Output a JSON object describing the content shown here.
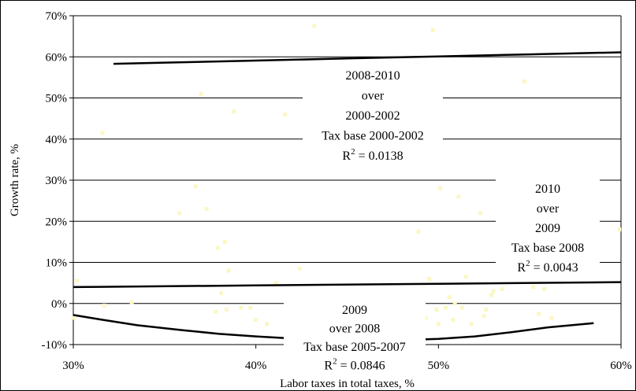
{
  "chart_data": {
    "type": "scatter",
    "xlabel": "Labor taxes in total taxes, %",
    "ylabel": "Growth rate, %",
    "xlim": [
      30,
      60
    ],
    "ylim": [
      -10,
      70
    ],
    "x_ticks": [
      30,
      40,
      50,
      60
    ],
    "x_tick_labels": [
      "30%",
      "40%",
      "50%",
      "60%"
    ],
    "y_ticks": [
      -10,
      0,
      10,
      20,
      30,
      40,
      50,
      60,
      70
    ],
    "y_tick_labels": [
      "-10%",
      "0%",
      "10%",
      "20%",
      "30%",
      "40%",
      "50%",
      "60%",
      "70%"
    ],
    "grid": "horizontal",
    "point_color": "#fbf7c4",
    "line_color": "#000000",
    "points": [
      [
        30.0,
        -3.5
      ],
      [
        30.2,
        5.5
      ],
      [
        31.6,
        41.5
      ],
      [
        31.7,
        -0.5
      ],
      [
        33.2,
        0.3
      ],
      [
        35.8,
        22.0
      ],
      [
        36.7,
        28.5
      ],
      [
        37.0,
        51.0
      ],
      [
        37.3,
        23.0
      ],
      [
        37.8,
        -2.0
      ],
      [
        37.9,
        13.5
      ],
      [
        38.1,
        2.5
      ],
      [
        38.3,
        15.0
      ],
      [
        38.4,
        -1.5
      ],
      [
        38.5,
        8.0
      ],
      [
        38.8,
        46.7
      ],
      [
        39.2,
        -1.0
      ],
      [
        39.7,
        -1.0
      ],
      [
        40.0,
        -4.0
      ],
      [
        40.6,
        -5.0
      ],
      [
        41.1,
        5.0
      ],
      [
        41.6,
        46.0
      ],
      [
        42.4,
        8.5
      ],
      [
        43.2,
        67.5
      ],
      [
        48.9,
        17.5
      ],
      [
        49.3,
        -3.5
      ],
      [
        49.5,
        6.0
      ],
      [
        49.7,
        66.5
      ],
      [
        49.9,
        -1.5
      ],
      [
        50.0,
        -5.0
      ],
      [
        50.1,
        28.0
      ],
      [
        50.4,
        -1.0
      ],
      [
        50.6,
        1.5
      ],
      [
        50.8,
        -4.0
      ],
      [
        50.9,
        0.0
      ],
      [
        51.1,
        26.0
      ],
      [
        51.3,
        -1.0
      ],
      [
        51.5,
        6.5
      ],
      [
        51.8,
        -5.0
      ],
      [
        52.3,
        22.0
      ],
      [
        52.5,
        -3.0
      ],
      [
        52.6,
        -1.5
      ],
      [
        52.9,
        2.0
      ],
      [
        53.0,
        3.0
      ],
      [
        53.5,
        3.5
      ],
      [
        54.7,
        54.0
      ],
      [
        55.2,
        4.0
      ],
      [
        55.5,
        -2.5
      ],
      [
        55.8,
        3.5
      ],
      [
        56.2,
        -3.5
      ],
      [
        59.9,
        18.0
      ]
    ],
    "trendlines": [
      {
        "x": [
          32.2,
          35,
          40,
          45,
          50,
          55,
          60
        ],
        "y": [
          58.3,
          58.6,
          59.1,
          59.6,
          60.1,
          60.6,
          61.1
        ]
      },
      {
        "x": [
          30,
          40,
          50,
          60
        ],
        "y": [
          4.0,
          4.4,
          4.8,
          5.2
        ]
      },
      {
        "x": [
          30.0,
          31.5,
          33.5,
          36.0,
          38.0,
          40.0,
          42.0,
          44.0,
          46.0,
          48.0,
          50.0,
          52.0,
          54.0,
          56.0,
          58.5
        ],
        "y": [
          -2.8,
          -3.9,
          -5.3,
          -6.5,
          -7.4,
          -8.0,
          -8.5,
          -8.8,
          -8.9,
          -8.9,
          -8.6,
          -8.0,
          -7.0,
          -5.8,
          -4.8
        ]
      }
    ],
    "annotations": [
      {
        "lines": [
          "2008-2010",
          "over",
          "2000-2002",
          "Tax base 2000-2002",
          "R2 = 0.0138"
        ]
      },
      {
        "lines": [
          "2010",
          "over",
          "2009",
          "Tax base 2008",
          "R2 = 0.0043"
        ]
      },
      {
        "lines": [
          "2009",
          "over 2008",
          "Tax base 2005-2007",
          "R2 = 0.0846"
        ]
      }
    ]
  }
}
